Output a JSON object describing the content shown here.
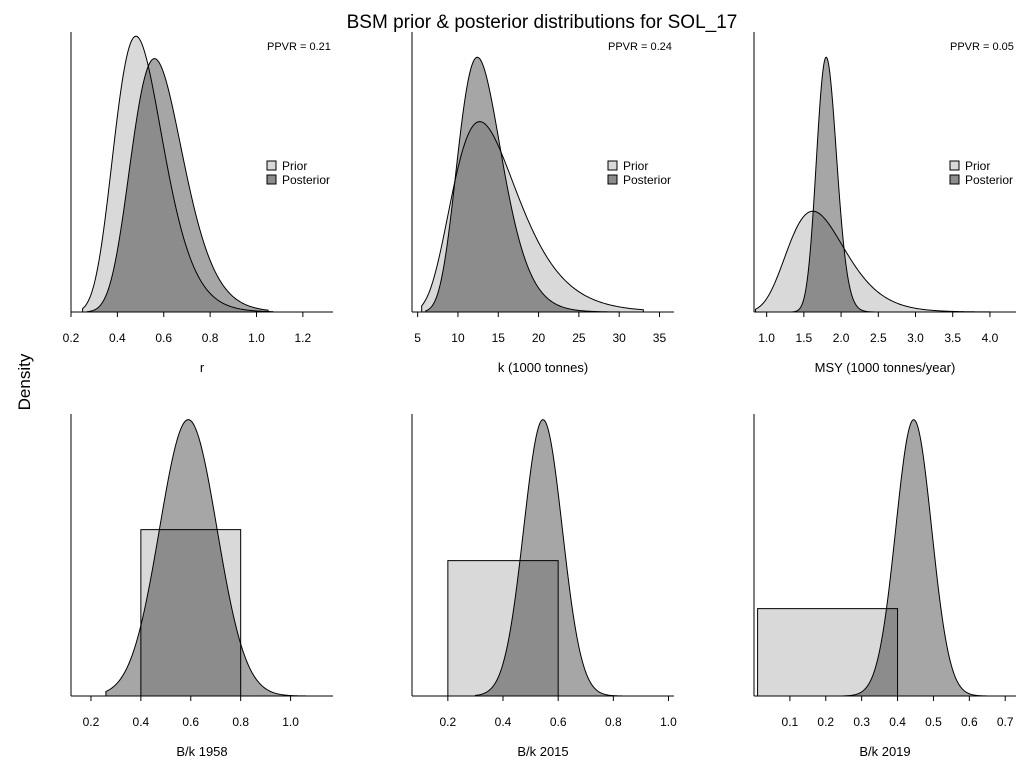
{
  "figure": {
    "title": "BSM prior & posterior distributions for SOL_17",
    "ylabel": "Density"
  },
  "colors": {
    "prior": "#d9d9d9",
    "posterior": "#a6a6a6",
    "overlap": "#8c8c8c",
    "line": "#000000"
  },
  "chart_data": [
    {
      "type": "area",
      "xlabel": "r",
      "xlim": [
        0.2,
        1.33
      ],
      "ticks": [
        0.2,
        0.4,
        0.6,
        0.8,
        1.0,
        1.2
      ],
      "tick_labels": [
        "0.2",
        "0.4",
        "0.6",
        "0.8",
        "1.0",
        "1.2"
      ],
      "ppvr": "PPVR = 0.21",
      "legend": [
        "Prior",
        "Posterior"
      ],
      "prior": {
        "dist": "lognormal",
        "mode": 0.48,
        "sigma": 0.22,
        "peak": 0.985,
        "range": [
          0.25,
          1.07
        ]
      },
      "posterior": {
        "dist": "lognormal",
        "mode": 0.56,
        "sigma": 0.2,
        "peak": 0.905,
        "range": [
          0.27,
          1.05
        ]
      }
    },
    {
      "type": "area",
      "xlabel": "k (1000 tonnes)",
      "xlim": [
        4.3,
        36.8
      ],
      "ticks": [
        5,
        10,
        15,
        20,
        25,
        30,
        35
      ],
      "tick_labels": [
        "5",
        "10",
        "15",
        "20",
        "25",
        "30",
        "35"
      ],
      "ppvr": "PPVR = 0.24",
      "legend": [
        "Prior",
        "Posterior"
      ],
      "prior": {
        "dist": "lognormal",
        "mode": 12.7,
        "sigma": 0.32,
        "peak": 0.68,
        "range": [
          5.5,
          33
        ]
      },
      "posterior": {
        "dist": "lognormal",
        "mode": 12.4,
        "sigma": 0.22,
        "peak": 0.91,
        "range": [
          6,
          30
        ]
      }
    },
    {
      "type": "area",
      "xlabel": "MSY (1000 tonnes/year)",
      "xlim": [
        0.83,
        4.35
      ],
      "ticks": [
        1.0,
        1.5,
        2.0,
        2.5,
        3.0,
        3.5,
        4.0
      ],
      "tick_labels": [
        "1.0",
        "1.5",
        "2.0",
        "2.5",
        "3.0",
        "3.5",
        "4.0"
      ],
      "ppvr": "PPVR = 0.05",
      "legend": [
        "Prior",
        "Posterior"
      ],
      "prior": {
        "dist": "lognormal",
        "mode": 1.62,
        "sigma": 0.24,
        "peak": 0.36,
        "range": [
          0.85,
          4.0
        ]
      },
      "posterior": {
        "dist": "lognormal",
        "mode": 1.8,
        "sigma": 0.075,
        "peak": 0.91,
        "range": [
          1.35,
          2.5
        ]
      }
    },
    {
      "type": "area",
      "xlabel": "B/k 1958",
      "xlim": [
        0.12,
        1.17
      ],
      "ticks": [
        0.2,
        0.4,
        0.6,
        0.8,
        1.0
      ],
      "tick_labels": [
        "0.2",
        "0.4",
        "0.6",
        "0.8",
        "1.0"
      ],
      "prior": {
        "dist": "uniform",
        "range": [
          0.4,
          0.8
        ],
        "height": 0.59
      },
      "posterior": {
        "dist": "normal",
        "mean": 0.59,
        "sd": 0.115,
        "peak": 0.98,
        "range": [
          0.26,
          1.06
        ]
      }
    },
    {
      "type": "area",
      "xlabel": "B/k 2015",
      "xlim": [
        0.07,
        1.02
      ],
      "ticks": [
        0.2,
        0.4,
        0.6,
        0.8,
        1.0
      ],
      "tick_labels": [
        "0.2",
        "0.4",
        "0.6",
        "0.8",
        "1.0"
      ],
      "prior": {
        "dist": "uniform",
        "range": [
          0.2,
          0.6
        ],
        "height": 0.48
      },
      "posterior": {
        "dist": "normal",
        "mean": 0.545,
        "sd": 0.07,
        "peak": 0.98,
        "range": [
          0.3,
          0.85
        ]
      }
    },
    {
      "type": "area",
      "xlabel": "B/k 2019",
      "xlim": [
        0.0,
        0.73
      ],
      "ticks": [
        0.1,
        0.2,
        0.3,
        0.4,
        0.5,
        0.6,
        0.7
      ],
      "tick_labels": [
        "0.1",
        "0.2",
        "0.3",
        "0.4",
        "0.5",
        "0.6",
        "0.7"
      ],
      "prior": {
        "dist": "uniform",
        "range": [
          0.01,
          0.4
        ],
        "height": 0.31
      },
      "posterior": {
        "dist": "normal",
        "mean": 0.445,
        "sd": 0.05,
        "peak": 0.98,
        "range": [
          0.25,
          0.65
        ]
      }
    }
  ]
}
